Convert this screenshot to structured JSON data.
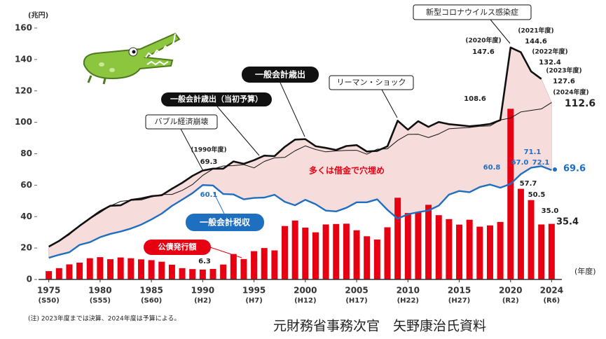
{
  "chart_data": {
    "type": "line-bar",
    "y_unit": "(兆円)",
    "x_unit": "(年度)",
    "x": [
      1975,
      1976,
      1977,
      1978,
      1979,
      1980,
      1981,
      1982,
      1983,
      1984,
      1985,
      1986,
      1987,
      1988,
      1989,
      1990,
      1991,
      1992,
      1993,
      1994,
      1995,
      1996,
      1997,
      1998,
      1999,
      2000,
      2001,
      2002,
      2003,
      2004,
      2005,
      2006,
      2007,
      2008,
      2009,
      2010,
      2011,
      2012,
      2013,
      2014,
      2015,
      2016,
      2017,
      2018,
      2019,
      2020,
      2021,
      2022,
      2023,
      2024
    ],
    "xlim": [
      1974,
      2025
    ],
    "xticks": [
      1975,
      1980,
      1985,
      1990,
      1995,
      2000,
      2005,
      2010,
      2015,
      2020,
      2024
    ],
    "xtick_sublabels": [
      "(S50)",
      "(S55)",
      "(S60)",
      "(H2)",
      "(H7)",
      "(H12)",
      "(H17)",
      "(H22)",
      "(H27)",
      "(R2)",
      "(R6)"
    ],
    "ylim": [
      0,
      160
    ],
    "yticks": [
      0,
      20,
      40,
      60,
      80,
      100,
      120,
      140,
      160
    ],
    "grid": false,
    "series": [
      {
        "name": "一般会計歳出",
        "kind": "line",
        "color": "#111111",
        "values": [
          20.9,
          24.5,
          29.1,
          34.1,
          38.8,
          43.4,
          46.9,
          47.2,
          50.6,
          51.5,
          53.0,
          53.6,
          57.7,
          61.5,
          65.9,
          69.3,
          70.5,
          70.5,
          75.1,
          73.6,
          75.9,
          78.8,
          78.5,
          84.4,
          89.0,
          89.3,
          84.8,
          83.7,
          82.4,
          84.9,
          85.5,
          81.4,
          81.8,
          84.7,
          101.0,
          95.3,
          100.7,
          97.1,
          100.2,
          98.8,
          98.2,
          97.5,
          98.1,
          98.9,
          101.4,
          147.6,
          144.6,
          132.4,
          127.6,
          null
        ]
      },
      {
        "name": "一般会計歳出（当初予算）",
        "kind": "line",
        "color": "#111111",
        "values": [
          21.3,
          24.3,
          28.5,
          34.3,
          38.6,
          42.6,
          46.8,
          49.7,
          50.4,
          50.6,
          52.5,
          54.1,
          54.1,
          56.7,
          60.4,
          66.2,
          70.3,
          72.2,
          72.4,
          73.1,
          71.0,
          75.1,
          77.4,
          77.7,
          81.9,
          85.0,
          82.7,
          81.2,
          81.8,
          82.1,
          82.2,
          79.7,
          82.9,
          83.1,
          88.5,
          92.3,
          92.4,
          90.3,
          92.6,
          95.9,
          96.3,
          96.7,
          97.5,
          97.7,
          101.5,
          102.7,
          106.6,
          107.6,
          108.5,
          112.6
        ]
      },
      {
        "name": "一般会計税収",
        "kind": "line",
        "color": "#1f6fc1",
        "values": [
          13.8,
          15.7,
          17.3,
          22.0,
          23.7,
          26.9,
          29.0,
          30.5,
          32.4,
          34.9,
          38.2,
          41.9,
          46.8,
          50.8,
          54.9,
          60.1,
          59.8,
          54.4,
          54.1,
          51.0,
          51.9,
          52.1,
          53.9,
          49.4,
          47.2,
          50.7,
          47.9,
          43.8,
          43.3,
          45.6,
          49.1,
          49.1,
          51.0,
          44.3,
          38.7,
          41.5,
          42.8,
          43.9,
          47.0,
          54.0,
          56.3,
          55.5,
          58.8,
          60.4,
          58.4,
          60.8,
          67.0,
          71.1,
          72.1,
          69.6
        ],
        "value_labels": [
          null,
          null,
          null,
          null,
          null,
          null,
          null,
          null,
          null,
          null,
          null,
          null,
          null,
          null,
          null,
          "60.1",
          null,
          null,
          null,
          null,
          null,
          null,
          null,
          null,
          null,
          null,
          null,
          null,
          null,
          null,
          null,
          null,
          null,
          null,
          null,
          null,
          null,
          null,
          null,
          null,
          null,
          null,
          null,
          null,
          null,
          "60.8",
          "67.0",
          "71.1",
          "72.1",
          "69.6"
        ]
      },
      {
        "name": "公債発行額",
        "kind": "bar",
        "color": "#e60012",
        "values": [
          5.3,
          7.2,
          9.6,
          10.7,
          13.5,
          14.2,
          12.9,
          14.0,
          13.5,
          12.8,
          12.3,
          11.3,
          9.4,
          7.2,
          6.6,
          6.3,
          6.7,
          9.5,
          16.2,
          13.0,
          18.0,
          20.0,
          18.5,
          34.0,
          37.5,
          33.0,
          30.0,
          35.0,
          35.3,
          35.5,
          31.3,
          27.5,
          25.4,
          33.2,
          52.0,
          42.3,
          42.8,
          47.5,
          40.9,
          38.4,
          34.9,
          38.0,
          33.6,
          34.4,
          36.6,
          108.6,
          57.7,
          50.5,
          35.0,
          35.4
        ],
        "value_labels": [
          null,
          null,
          null,
          null,
          null,
          null,
          null,
          null,
          null,
          null,
          null,
          null,
          null,
          null,
          null,
          "6.3",
          null,
          null,
          null,
          null,
          null,
          null,
          null,
          null,
          null,
          null,
          null,
          null,
          null,
          null,
          null,
          null,
          null,
          null,
          null,
          null,
          null,
          null,
          null,
          null,
          null,
          null,
          null,
          null,
          null,
          "108.6",
          "57.7",
          "50.5",
          "35.0",
          "35.4"
        ]
      }
    ],
    "gap_fill_color": "#f7dcdc",
    "annotations": [
      "(1990年度)",
      "(2020年度)",
      "(2021年度)",
      "(2022年度)",
      "(2023年度)",
      "(2024年度)",
      "バブル経済崩壊",
      "リーマン・ショック",
      "新型コロナウイルス感染症",
      "多くは借金で穴埋め"
    ],
    "note": "(注) 2023年度までは決算、2024年度は予算による。",
    "source": "元財務省事務次官　矢野康治氏資料"
  }
}
